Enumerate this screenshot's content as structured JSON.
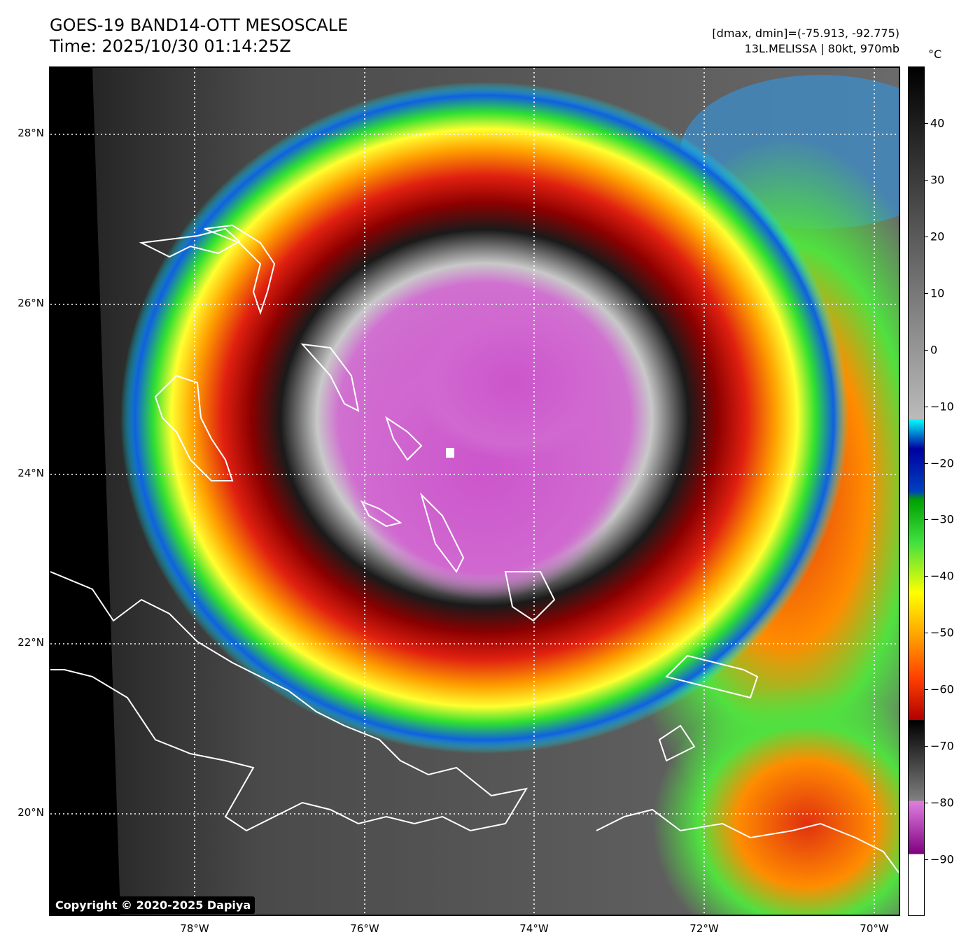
{
  "header": {
    "title": "GOES-19 BAND14-OTT MESOSCALE",
    "time": "Time: 2025/10/30 01:14:25Z",
    "dmax_dmin": "[dmax, dmin]=(-75.913, -92.775)",
    "storm_info": "13L.MELISSA | 80kt, 970mb"
  },
  "map": {
    "lat_labels": [
      "28°N",
      "26°N",
      "24°N",
      "22°N",
      "20°N"
    ],
    "lon_labels": [
      "78°W",
      "76°W",
      "74°W",
      "72°W",
      "70°W"
    ],
    "copyright": "Copyright © 2020-2025 Dapiya"
  },
  "colorbar": {
    "unit": "°C",
    "ticks": [
      "40",
      "30",
      "20",
      "10",
      "0",
      "−10",
      "−20",
      "−30",
      "−40",
      "−50",
      "−60",
      "−70",
      "−80",
      "−90"
    ],
    "min": -100,
    "max": 50
  }
}
